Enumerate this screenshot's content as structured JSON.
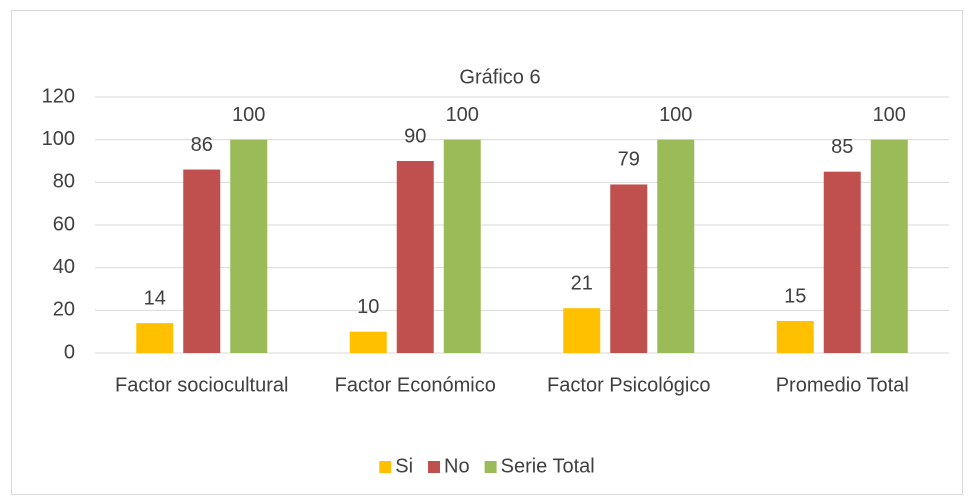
{
  "chart_data": {
    "type": "bar",
    "title": "Gráfico 6",
    "categories": [
      "Factor sociocultural",
      "Factor Económico",
      "Factor Psicológico",
      "Promedio Total"
    ],
    "series": [
      {
        "name": "Si",
        "color": "#ffc000",
        "values": [
          14,
          10,
          21,
          15
        ]
      },
      {
        "name": "No",
        "color": "#c0504d",
        "values": [
          86,
          90,
          79,
          85
        ]
      },
      {
        "name": "Serie Total",
        "color": "#9bbb59",
        "values": [
          100,
          100,
          100,
          100
        ]
      }
    ],
    "ylim": [
      0,
      120
    ],
    "yticks": [
      0,
      20,
      40,
      60,
      80,
      100,
      120
    ],
    "grid": true,
    "legend": "bottom"
  }
}
